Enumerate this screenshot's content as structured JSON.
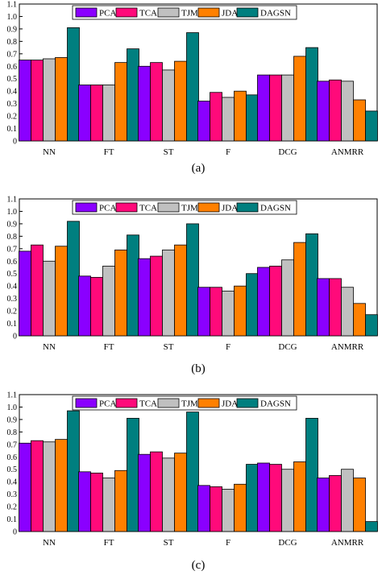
{
  "series_style": {
    "PCA": "#8a00ff",
    "TCA": "#ff0a7a",
    "TJM": "#c0c0c0",
    "JDA": "#ff8000",
    "DAGSN": "#007f7f"
  },
  "chart_data": [
    {
      "type": "bar",
      "caption": "(a)",
      "categories": [
        "NN",
        "FT",
        "ST",
        "F",
        "DCG",
        "ANMRR"
      ],
      "ylim": [
        0,
        1.1
      ],
      "yticks": [
        "0",
        "0.1",
        "0.2",
        "0.3",
        "0.4",
        "0.5",
        "0.6",
        "0.7",
        "0.8",
        "0.9",
        "1.0",
        "1.1"
      ],
      "legend_position": "top",
      "series": [
        {
          "name": "PCA",
          "values": [
            0.65,
            0.45,
            0.6,
            0.32,
            0.53,
            0.48
          ]
        },
        {
          "name": "TCA",
          "values": [
            0.65,
            0.45,
            0.63,
            0.39,
            0.53,
            0.49
          ]
        },
        {
          "name": "TJM",
          "values": [
            0.66,
            0.45,
            0.57,
            0.35,
            0.53,
            0.48
          ]
        },
        {
          "name": "JDA",
          "values": [
            0.67,
            0.63,
            0.64,
            0.4,
            0.68,
            0.33
          ]
        },
        {
          "name": "DAGSN",
          "values": [
            0.91,
            0.74,
            0.87,
            0.37,
            0.75,
            0.24
          ]
        }
      ]
    },
    {
      "type": "bar",
      "caption": "(b)",
      "categories": [
        "NN",
        "FT",
        "ST",
        "F",
        "DCG",
        "ANMRR"
      ],
      "ylim": [
        0,
        1.1
      ],
      "yticks": [
        "0",
        "0.1",
        "0.2",
        "0.3",
        "0.4",
        "0.5",
        "0.6",
        "0.7",
        "0.8",
        "0.9",
        "1.0",
        "1.1"
      ],
      "legend_position": "top",
      "series": [
        {
          "name": "PCA",
          "values": [
            0.68,
            0.48,
            0.62,
            0.39,
            0.55,
            0.46
          ]
        },
        {
          "name": "TCA",
          "values": [
            0.73,
            0.47,
            0.64,
            0.39,
            0.56,
            0.46
          ]
        },
        {
          "name": "TJM",
          "values": [
            0.6,
            0.56,
            0.69,
            0.36,
            0.61,
            0.39
          ]
        },
        {
          "name": "JDA",
          "values": [
            0.72,
            0.69,
            0.73,
            0.4,
            0.75,
            0.26
          ]
        },
        {
          "name": "DAGSN",
          "values": [
            0.92,
            0.81,
            0.9,
            0.5,
            0.82,
            0.17
          ]
        }
      ]
    },
    {
      "type": "bar",
      "caption": "(c)",
      "categories": [
        "NN",
        "FT",
        "ST",
        "F",
        "DCG",
        "ANMRR"
      ],
      "ylim": [
        0,
        1.1
      ],
      "yticks": [
        "0",
        "0.1",
        "0.2",
        "0.3",
        "0.4",
        "0.5",
        "0.6",
        "0.7",
        "0.8",
        "0.9",
        "1.0",
        "1.1"
      ],
      "legend_position": "top",
      "series": [
        {
          "name": "PCA",
          "values": [
            0.71,
            0.48,
            0.62,
            0.37,
            0.55,
            0.43
          ]
        },
        {
          "name": "TCA",
          "values": [
            0.73,
            0.47,
            0.64,
            0.36,
            0.54,
            0.45
          ]
        },
        {
          "name": "TJM",
          "values": [
            0.72,
            0.43,
            0.59,
            0.34,
            0.5,
            0.5
          ]
        },
        {
          "name": "JDA",
          "values": [
            0.74,
            0.49,
            0.63,
            0.38,
            0.56,
            0.43
          ]
        },
        {
          "name": "DAGSN",
          "values": [
            0.97,
            0.91,
            0.96,
            0.54,
            0.91,
            0.08
          ]
        }
      ]
    }
  ]
}
